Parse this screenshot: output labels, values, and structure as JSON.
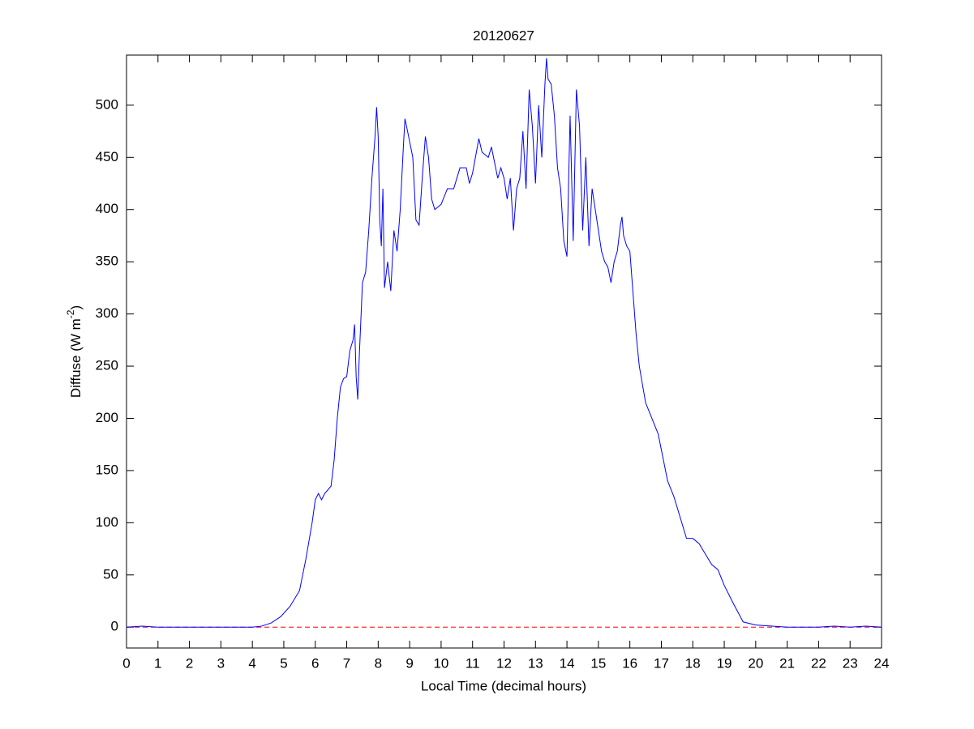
{
  "chart_data": {
    "type": "line",
    "title": "20120627",
    "xlabel": "Local Time (decimal hours)",
    "ylabel": {
      "text": "Diffuse (W m",
      "sup": "-2",
      "tail": ")"
    },
    "xlim": [
      0,
      24
    ],
    "ylim": [
      -20,
      548
    ],
    "xticks": [
      0,
      1,
      2,
      3,
      4,
      5,
      6,
      7,
      8,
      9,
      10,
      11,
      12,
      13,
      14,
      15,
      16,
      17,
      18,
      19,
      20,
      21,
      22,
      23,
      24
    ],
    "yticks": [
      0,
      50,
      100,
      150,
      200,
      250,
      300,
      350,
      400,
      450,
      500
    ],
    "hline": {
      "y": 0,
      "color": "#ff0000",
      "style": "dashed"
    },
    "series": [
      {
        "color": "#0000ff",
        "x": [
          0,
          0.5,
          1,
          2,
          3,
          4,
          4.3,
          4.6,
          4.9,
          5.2,
          5.5,
          5.7,
          5.9,
          6.0,
          6.1,
          6.2,
          6.3,
          6.5,
          6.6,
          6.7,
          6.8,
          6.9,
          7.0,
          7.1,
          7.2,
          7.25,
          7.3,
          7.35,
          7.4,
          7.5,
          7.6,
          7.7,
          7.8,
          7.9,
          7.95,
          8.0,
          8.05,
          8.1,
          8.15,
          8.2,
          8.3,
          8.4,
          8.5,
          8.6,
          8.7,
          8.8,
          8.85,
          8.9,
          9.0,
          9.1,
          9.2,
          9.3,
          9.4,
          9.5,
          9.6,
          9.7,
          9.8,
          10,
          10.2,
          10.4,
          10.5,
          10.6,
          10.8,
          10.9,
          11.0,
          11.2,
          11.3,
          11.5,
          11.6,
          11.7,
          11.8,
          11.9,
          12.0,
          12.1,
          12.2,
          12.3,
          12.4,
          12.5,
          12.6,
          12.7,
          12.8,
          12.9,
          13.0,
          13.1,
          13.2,
          13.3,
          13.35,
          13.4,
          13.5,
          13.6,
          13.7,
          13.8,
          13.9,
          14.0,
          14.1,
          14.2,
          14.3,
          14.4,
          14.5,
          14.6,
          14.7,
          14.8,
          14.9,
          15.0,
          15.1,
          15.2,
          15.3,
          15.4,
          15.5,
          15.6,
          15.7,
          15.75,
          15.8,
          15.9,
          16.0,
          16.1,
          16.2,
          16.3,
          16.5,
          16.7,
          16.9,
          17.0,
          17.2,
          17.4,
          17.6,
          17.8,
          18.0,
          18.2,
          18.4,
          18.6,
          18.8,
          19.0,
          19.3,
          19.6,
          20,
          21,
          22,
          22.5,
          23,
          23.5,
          24
        ],
        "values": [
          0,
          1,
          0,
          0,
          0,
          0,
          1,
          4,
          10,
          20,
          35,
          65,
          100,
          122,
          128,
          122,
          128,
          135,
          160,
          200,
          230,
          238,
          240,
          265,
          275,
          290,
          240,
          218,
          260,
          330,
          340,
          380,
          430,
          470,
          498,
          470,
          390,
          365,
          420,
          325,
          350,
          322,
          380,
          360,
          400,
          460,
          487,
          480,
          465,
          450,
          390,
          385,
          430,
          470,
          450,
          410,
          400,
          405,
          420,
          420,
          430,
          440,
          440,
          425,
          435,
          468,
          455,
          450,
          460,
          445,
          430,
          440,
          430,
          410,
          430,
          380,
          420,
          430,
          475,
          420,
          515,
          480,
          425,
          500,
          450,
          520,
          545,
          525,
          520,
          490,
          440,
          420,
          370,
          355,
          490,
          370,
          515,
          480,
          380,
          450,
          365,
          420,
          400,
          380,
          360,
          350,
          345,
          330,
          350,
          360,
          385,
          393,
          375,
          365,
          360,
          320,
          280,
          250,
          215,
          200,
          185,
          170,
          140,
          125,
          105,
          85,
          85,
          80,
          70,
          60,
          55,
          40,
          22,
          5,
          2,
          0,
          0,
          1,
          0,
          1,
          0
        ]
      }
    ]
  }
}
